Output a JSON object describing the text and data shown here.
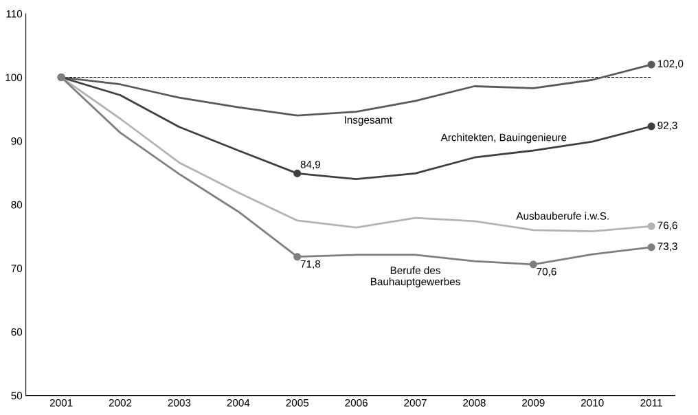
{
  "chart_data": {
    "type": "line",
    "categories": [
      "2001",
      "2002",
      "2003",
      "2004",
      "2005",
      "2006",
      "2007",
      "2008",
      "2009",
      "2010",
      "2011"
    ],
    "ylim": [
      50,
      110
    ],
    "yticks": [
      50,
      60,
      70,
      80,
      90,
      100,
      110
    ],
    "grid": false,
    "legend": false,
    "line_style": "solid",
    "ref_lines": [
      {
        "axis": "y",
        "value": 100,
        "color": "#000000",
        "line_style": "dashed"
      }
    ],
    "series": [
      {
        "name": "Insgesamt",
        "color": "#595959",
        "values": [
          100,
          98.9,
          96.8,
          95.3,
          94.0,
          94.6,
          96.3,
          98.6,
          98.3,
          99.6,
          102.0
        ],
        "value_labels": [
          null,
          null,
          null,
          null,
          null,
          null,
          null,
          null,
          null,
          null,
          "102,0"
        ]
      },
      {
        "name": "Architekten, Bauingenieure",
        "color": "#404040",
        "values": [
          100,
          97.2,
          92.2,
          88.5,
          84.9,
          84.0,
          84.9,
          87.4,
          88.5,
          89.9,
          92.3
        ],
        "value_labels": [
          null,
          null,
          null,
          null,
          "84,9",
          null,
          null,
          null,
          null,
          null,
          "92,3"
        ]
      },
      {
        "name": "Ausbauberufe i.w.S.",
        "color": "#b3b3b3",
        "values": [
          100,
          93.5,
          86.6,
          81.9,
          77.5,
          76.4,
          77.9,
          77.4,
          76.0,
          75.8,
          76.6
        ],
        "value_labels": [
          null,
          null,
          null,
          null,
          null,
          null,
          null,
          null,
          null,
          null,
          "76,6"
        ]
      },
      {
        "name": "Berufe des\nBauhauptgewerbes",
        "color": "#7f7f7f",
        "values": [
          100,
          91.3,
          84.8,
          78.9,
          71.8,
          72.1,
          72.1,
          71.1,
          70.6,
          72.2,
          73.3
        ],
        "value_labels": [
          null,
          null,
          null,
          null,
          "71,8",
          null,
          null,
          null,
          "70,6",
          null,
          "73,3"
        ]
      }
    ]
  }
}
